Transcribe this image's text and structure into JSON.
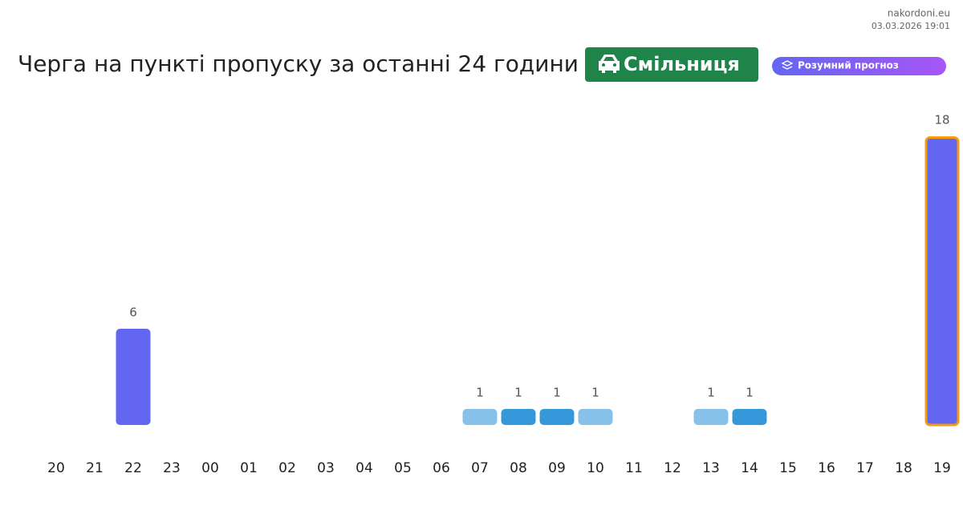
{
  "site": "nakordoni.eu",
  "timestamp": "03.03.2026 19:01",
  "badge": "Смільниця",
  "pill": "Розумний прогноз",
  "chart_data": {
    "type": "bar",
    "title": "Черга на пункті пропуску за останні 24 години",
    "categories": [
      "20",
      "21",
      "22",
      "23",
      "00",
      "01",
      "02",
      "03",
      "04",
      "05",
      "06",
      "07",
      "08",
      "09",
      "10",
      "11",
      "12",
      "13",
      "14",
      "15",
      "16",
      "17",
      "18",
      "19"
    ],
    "values": [
      null,
      null,
      6,
      null,
      null,
      null,
      null,
      null,
      null,
      null,
      null,
      1,
      1,
      1,
      1,
      null,
      null,
      1,
      1,
      null,
      null,
      null,
      null,
      18
    ],
    "colors": [
      null,
      null,
      "#6366f1",
      null,
      null,
      null,
      null,
      null,
      null,
      null,
      null,
      "#85c1e9",
      "#3498db",
      "#3498db",
      "#85c1e9",
      null,
      null,
      "#85c1e9",
      "#3498db",
      null,
      null,
      null,
      null,
      "#6366f1"
    ],
    "highlight_color": "#f39c12"
  }
}
